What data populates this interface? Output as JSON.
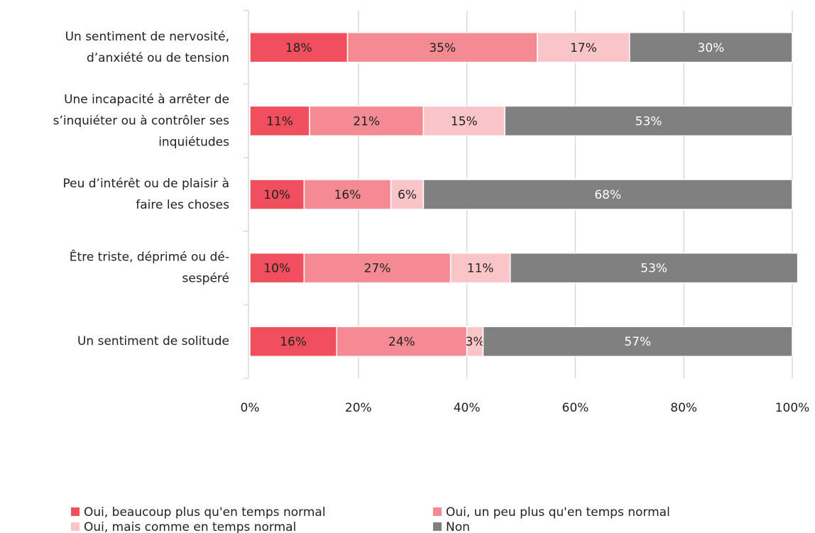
{
  "chart_data": {
    "type": "stacked-bar-horizontal",
    "categories": [
      [
        "Un sentiment de nervosité,",
        "d’anxiété ou de tension"
      ],
      [
        "Une incapacité à arrêter de",
        "s’inquiéter ou à contrôler ses",
        "inquiétudes"
      ],
      [
        "Peu d’intérêt ou de plaisir à",
        "faire les choses"
      ],
      [
        "Être triste, déprimé ou dé-",
        "sespéré"
      ],
      [
        "Un sentiment de solitude"
      ]
    ],
    "series": [
      {
        "name": "Oui, beaucoup plus qu'en temps normal",
        "color": "#f0505e",
        "label_color": "#222222",
        "values": [
          18,
          11,
          10,
          10,
          16
        ],
        "value_labels": [
          "18%",
          "11%",
          "10%",
          "10%",
          "16%"
        ]
      },
      {
        "name": "Oui, un peu plus qu'en temps normal",
        "color": "#f48b93",
        "label_color": "#222222",
        "values": [
          35,
          21,
          16,
          27,
          24
        ],
        "value_labels": [
          "35%",
          "21%",
          "16%",
          "27%",
          "24%"
        ]
      },
      {
        "name": "Oui, mais comme en temps normal",
        "color": "#f9c5c9",
        "label_color": "#222222",
        "values": [
          17,
          15,
          6,
          11,
          3
        ],
        "value_labels": [
          "17%",
          "15%",
          "6%",
          "11%",
          "3%"
        ]
      },
      {
        "name": "Non",
        "color": "#808080",
        "label_color": "#ffffff",
        "values": [
          30,
          53,
          68,
          53,
          57
        ],
        "value_labels": [
          "30%",
          "53%",
          "68%",
          "53%",
          "57%"
        ]
      }
    ],
    "xlim": [
      0,
      100
    ],
    "xticks": [
      {
        "value": 0,
        "label": "0%"
      },
      {
        "value": 20,
        "label": "20%"
      },
      {
        "value": 40,
        "label": "40%"
      },
      {
        "value": 60,
        "label": "60%"
      },
      {
        "value": 80,
        "label": "80%"
      },
      {
        "value": 100,
        "label": "100%"
      }
    ],
    "grid": true,
    "legend": "bottom"
  }
}
